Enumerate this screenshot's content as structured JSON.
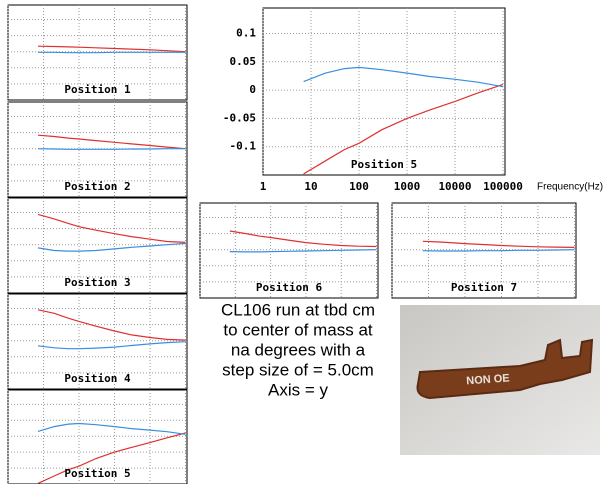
{
  "chart_data": [
    {
      "type": "line",
      "title": "Position 1",
      "xlog": true,
      "xlim": [
        1,
        110000
      ],
      "ylim": [
        -0.15,
        0.145
      ],
      "xticks": [
        1,
        10,
        100,
        1000,
        10000,
        100000
      ],
      "yticks": [
        -0.1,
        -0.05,
        0,
        0.05,
        0.1
      ],
      "grid": true,
      "tick_labels": false,
      "x": [
        7,
        20,
        50,
        100,
        300,
        1000,
        3000,
        10000,
        30000,
        100000
      ],
      "series": [
        {
          "color": "#e03030",
          "values": [
            0.017,
            0.016,
            0.015,
            0.014,
            0.012,
            0.01,
            0.008,
            0.006,
            0.003,
            0.0
          ]
        },
        {
          "color": "#3a8ee0",
          "values": [
            -0.002,
            -0.002,
            -0.003,
            -0.003,
            -0.003,
            -0.002,
            -0.002,
            -0.002,
            -0.002,
            -0.002
          ]
        }
      ]
    },
    {
      "type": "line",
      "title": "Position 2",
      "xlog": true,
      "xlim": [
        1,
        110000
      ],
      "ylim": [
        -0.15,
        0.145
      ],
      "xticks": [
        1,
        10,
        100,
        1000,
        10000,
        100000
      ],
      "yticks": [
        -0.1,
        -0.05,
        0,
        0.05,
        0.1
      ],
      "grid": true,
      "tick_labels": false,
      "x": [
        7,
        20,
        50,
        100,
        300,
        1000,
        3000,
        10000,
        30000,
        100000
      ],
      "series": [
        {
          "color": "#e03030",
          "values": [
            0.042,
            0.038,
            0.033,
            0.03,
            0.025,
            0.02,
            0.015,
            0.01,
            0.005,
            0.0
          ]
        },
        {
          "color": "#3a8ee0",
          "values": [
            0.0,
            -0.001,
            -0.002,
            -0.002,
            -0.002,
            -0.002,
            -0.001,
            -0.001,
            0.0,
            0.0
          ]
        }
      ]
    },
    {
      "type": "line",
      "title": "Position 3",
      "xlog": true,
      "xlim": [
        1,
        110000
      ],
      "ylim": [
        -0.15,
        0.145
      ],
      "xticks": [
        1,
        10,
        100,
        1000,
        10000,
        100000
      ],
      "yticks": [
        -0.1,
        -0.05,
        0,
        0.05,
        0.1
      ],
      "grid": true,
      "tick_labels": false,
      "x": [
        7,
        20,
        50,
        100,
        300,
        1000,
        3000,
        10000,
        30000,
        100000
      ],
      "series": [
        {
          "color": "#e03030",
          "values": [
            0.094,
            0.08,
            0.066,
            0.056,
            0.045,
            0.034,
            0.025,
            0.017,
            0.01,
            0.007
          ]
        },
        {
          "color": "#3a8ee0",
          "values": [
            -0.01,
            -0.018,
            -0.02,
            -0.02,
            -0.018,
            -0.013,
            -0.008,
            -0.004,
            0.0,
            0.004
          ]
        }
      ]
    },
    {
      "type": "line",
      "title": "Position 4",
      "xlog": true,
      "xlim": [
        1,
        110000
      ],
      "ylim": [
        -0.15,
        0.145
      ],
      "xticks": [
        1,
        10,
        100,
        1000,
        10000,
        100000
      ],
      "yticks": [
        -0.1,
        -0.05,
        0,
        0.05,
        0.1
      ],
      "grid": true,
      "tick_labels": false,
      "x": [
        7,
        20,
        50,
        100,
        300,
        1000,
        3000,
        10000,
        30000,
        100000
      ],
      "series": [
        {
          "color": "#e03030",
          "values": [
            0.096,
            0.085,
            0.07,
            0.06,
            0.045,
            0.03,
            0.018,
            0.01,
            0.004,
            0.002
          ]
        },
        {
          "color": "#3a8ee0",
          "values": [
            -0.016,
            -0.022,
            -0.025,
            -0.025,
            -0.023,
            -0.02,
            -0.015,
            -0.01,
            -0.006,
            -0.003
          ]
        }
      ]
    },
    {
      "type": "line",
      "title": "Position 5",
      "xlog": true,
      "xlim": [
        1,
        110000
      ],
      "ylim": [
        -0.15,
        0.145
      ],
      "xticks": [
        1,
        10,
        100,
        1000,
        10000,
        100000
      ],
      "yticks": [
        -0.1,
        -0.05,
        0,
        0.05,
        0.1
      ],
      "grid": true,
      "tick_labels": false,
      "x": [
        7,
        20,
        50,
        100,
        300,
        1000,
        3000,
        10000,
        30000,
        100000
      ],
      "series": [
        {
          "color": "#e03030",
          "values": [
            -0.148,
            -0.125,
            -0.105,
            -0.094,
            -0.07,
            -0.05,
            -0.035,
            -0.02,
            -0.005,
            0.01
          ]
        },
        {
          "color": "#3a8ee0",
          "values": [
            0.015,
            0.03,
            0.038,
            0.04,
            0.036,
            0.03,
            0.024,
            0.019,
            0.014,
            0.006
          ]
        }
      ]
    },
    {
      "type": "line",
      "title": "Position 5",
      "xlabel": "Frequency(Hz)",
      "xlog": true,
      "xlim": [
        1,
        110000
      ],
      "ylim": [
        -0.15,
        0.145
      ],
      "xticks": [
        1,
        10,
        100,
        1000,
        10000,
        100000
      ],
      "yticks": [
        -0.1,
        -0.05,
        0,
        0.05,
        0.1
      ],
      "grid": true,
      "tick_labels": true,
      "x": [
        7,
        20,
        50,
        100,
        300,
        1000,
        3000,
        10000,
        30000,
        100000
      ],
      "series": [
        {
          "color": "#e03030",
          "values": [
            -0.148,
            -0.125,
            -0.105,
            -0.094,
            -0.07,
            -0.05,
            -0.035,
            -0.02,
            -0.005,
            0.01
          ]
        },
        {
          "color": "#3a8ee0",
          "values": [
            0.015,
            0.03,
            0.038,
            0.04,
            0.036,
            0.03,
            0.024,
            0.019,
            0.014,
            0.006
          ]
        }
      ]
    },
    {
      "type": "line",
      "title": "Position 6",
      "xlog": true,
      "xlim": [
        1,
        110000
      ],
      "ylim": [
        -0.15,
        0.145
      ],
      "xticks": [
        1,
        10,
        100,
        1000,
        10000,
        100000
      ],
      "yticks": [
        -0.1,
        -0.05,
        0,
        0.05,
        0.1
      ],
      "grid": true,
      "tick_labels": false,
      "x": [
        7,
        20,
        50,
        100,
        300,
        1000,
        3000,
        10000,
        30000,
        100000
      ],
      "series": [
        {
          "color": "#e03030",
          "values": [
            0.058,
            0.05,
            0.042,
            0.038,
            0.03,
            0.022,
            0.017,
            0.013,
            0.011,
            0.01
          ]
        },
        {
          "color": "#3a8ee0",
          "values": [
            -0.006,
            -0.007,
            -0.007,
            -0.006,
            -0.005,
            -0.004,
            -0.003,
            -0.002,
            -0.001,
            0.0
          ]
        }
      ]
    },
    {
      "type": "line",
      "title": "Position 7",
      "xlog": true,
      "xlim": [
        1,
        110000
      ],
      "ylim": [
        -0.15,
        0.145
      ],
      "xticks": [
        1,
        10,
        100,
        1000,
        10000,
        100000
      ],
      "yticks": [
        -0.1,
        -0.05,
        0,
        0.05,
        0.1
      ],
      "grid": true,
      "tick_labels": false,
      "x": [
        7,
        20,
        50,
        100,
        300,
        1000,
        3000,
        10000,
        30000,
        100000
      ],
      "series": [
        {
          "color": "#e03030",
          "values": [
            0.026,
            0.024,
            0.021,
            0.019,
            0.016,
            0.013,
            0.011,
            0.009,
            0.008,
            0.007
          ]
        },
        {
          "color": "#3a8ee0",
          "values": [
            -0.003,
            -0.004,
            -0.004,
            -0.004,
            -0.003,
            -0.003,
            -0.002,
            -0.002,
            -0.001,
            0.0
          ]
        }
      ]
    }
  ],
  "caption": [
    "CL106 run at tbd cm",
    "to center of mass at",
    "na degrees with a",
    "step size of = 5.0cm",
    "Axis = y"
  ],
  "photo": {
    "text": "NON OE"
  }
}
